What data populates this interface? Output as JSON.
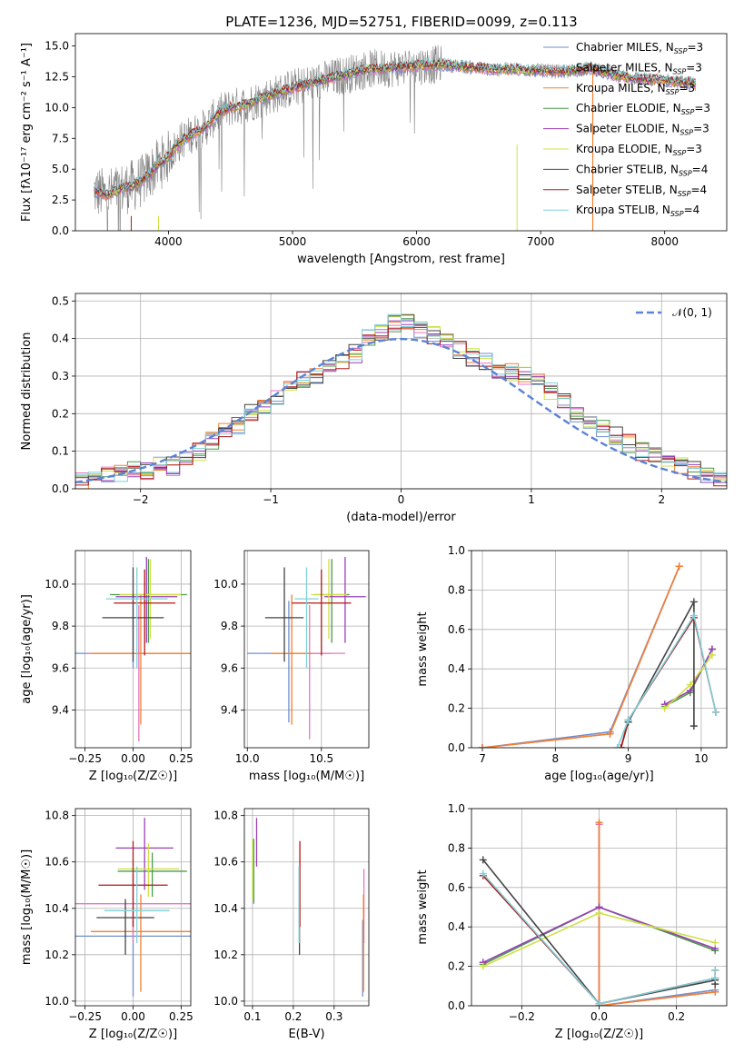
{
  "title": "PLATE=1236, MJD=52751, FIBERID=0099, z=0.113",
  "colors": {
    "Chabrier MILES": "#6f8fcf",
    "Salpeter MILES": "#e377c2",
    "Kroupa MILES": "#f08030",
    "Chabrier ELODIE": "#4a9a4a",
    "Salpeter ELODIE": "#9a3fb5",
    "Kroupa ELODIE": "#cfe045",
    "Chabrier STELIB": "#444444",
    "Salpeter STELIB": "#b01818",
    "Kroupa STELIB": "#7fd0d8",
    "data": "#808080",
    "normal": "#5b83d6"
  },
  "chart_data": [
    {
      "id": "spectrum",
      "type": "line",
      "xlabel": "wavelength [Angstrom, rest frame]",
      "ylabel": "Flux [fλ10⁻¹⁷ erg cm⁻² s⁻¹ A⁻¹]",
      "xlim": [
        3250,
        8500
      ],
      "ylim": [
        0,
        16
      ],
      "xticks": [
        "4000",
        "5000",
        "6000",
        "7000",
        "8000"
      ],
      "yticks": [
        "0.0",
        "2.5",
        "5.0",
        "7.5",
        "10.0",
        "12.5",
        "15.0"
      ],
      "xtick_values": [
        4000,
        5000,
        6000,
        7000,
        8000
      ],
      "ytick_values": [
        0,
        2.5,
        5,
        7.5,
        10,
        12.5,
        15
      ],
      "model_continuum": {
        "x": [
          3400,
          3500,
          3600,
          3700,
          3800,
          3900,
          4000,
          4100,
          4200,
          4300,
          4400,
          4500,
          4600,
          4800,
          5000,
          5200,
          5400,
          5600,
          5800,
          6000,
          6200,
          6400,
          6600,
          6800,
          7000,
          7200,
          7400,
          7600,
          7800,
          8000,
          8250
        ],
        "y": [
          3.2,
          2.9,
          3.3,
          3.6,
          4.1,
          5.2,
          6.0,
          7.3,
          7.9,
          8.4,
          9.5,
          10.0,
          10.2,
          10.9,
          11.6,
          12.1,
          12.6,
          13.1,
          13.2,
          13.4,
          13.5,
          13.3,
          13.1,
          13.1,
          13.0,
          12.9,
          13.2,
          12.6,
          12.3,
          12.2,
          11.9
        ]
      },
      "legend_location": "upper right",
      "legend": [
        {
          "label": "Chabrier MILES, N",
          "sub": "SSP",
          "tail": "=3"
        },
        {
          "label": "Salpeter MILES, N",
          "sub": "SSP",
          "tail": "=3"
        },
        {
          "label": "Kroupa MILES, N",
          "sub": "SSP",
          "tail": "=3"
        },
        {
          "label": "Chabrier ELODIE, N",
          "sub": "SSP",
          "tail": "=3"
        },
        {
          "label": "Salpeter ELODIE, N",
          "sub": "SSP",
          "tail": "=3"
        },
        {
          "label": "Kroupa ELODIE, N",
          "sub": "SSP",
          "tail": "=3"
        },
        {
          "label": "Chabrier STELIB, N",
          "sub": "SSP",
          "tail": "=4"
        },
        {
          "label": "Salpeter STELIB, N",
          "sub": "SSP",
          "tail": "=4"
        },
        {
          "label": "Kroupa STELIB, N",
          "sub": "SSP",
          "tail": "=4"
        }
      ]
    },
    {
      "id": "residuals",
      "type": "line",
      "xlabel": "(data-model)/error",
      "ylabel": "Normed distribution",
      "xlim": [
        -2.5,
        2.5
      ],
      "ylim": [
        0,
        0.52
      ],
      "xticks": [
        "−2",
        "−1",
        "0",
        "1",
        "2"
      ],
      "xtick_values": [
        -2,
        -1,
        0,
        1,
        2
      ],
      "yticks": [
        "0.0",
        "0.1",
        "0.2",
        "0.3",
        "0.4",
        "0.5"
      ],
      "ytick_values": [
        0,
        0.1,
        0.2,
        0.3,
        0.4,
        0.5
      ],
      "grid": true,
      "legend": "𝒩(0, 1)",
      "normal": {
        "mu": 0,
        "sigma": 1
      },
      "hist_bins": [
        -2.5,
        -2.4,
        -2.3,
        -2.2,
        -2.1,
        -2.0,
        -1.9,
        -1.8,
        -1.7,
        -1.6,
        -1.5,
        -1.4,
        -1.3,
        -1.2,
        -1.1,
        -1.0,
        -0.9,
        -0.8,
        -0.7,
        -0.6,
        -0.5,
        -0.4,
        -0.3,
        -0.2,
        -0.1,
        0.0,
        0.1,
        0.2,
        0.3,
        0.4,
        0.5,
        0.6,
        0.7,
        0.8,
        0.9,
        1.0,
        1.1,
        1.2,
        1.3,
        1.4,
        1.5,
        1.6,
        1.7,
        1.8,
        1.9,
        2.0,
        2.1,
        2.2,
        2.3,
        2.4
      ],
      "hist_values": [
        0.02,
        0.03,
        0.04,
        0.04,
        0.05,
        0.05,
        0.06,
        0.06,
        0.08,
        0.1,
        0.13,
        0.15,
        0.17,
        0.2,
        0.22,
        0.24,
        0.27,
        0.29,
        0.3,
        0.33,
        0.34,
        0.36,
        0.4,
        0.42,
        0.44,
        0.44,
        0.42,
        0.41,
        0.4,
        0.37,
        0.35,
        0.34,
        0.31,
        0.31,
        0.3,
        0.29,
        0.26,
        0.23,
        0.2,
        0.18,
        0.16,
        0.14,
        0.12,
        0.1,
        0.09,
        0.07,
        0.06,
        0.05,
        0.04,
        0.03
      ]
    },
    {
      "id": "age_vs_Z",
      "type": "scatter",
      "xlabel": "Z [log₁₀(Z/Z☉)]",
      "ylabel": "age  [log₁₀(age/yr)]",
      "xlim": [
        -0.3,
        0.3
      ],
      "ylim": [
        9.22,
        10.16
      ],
      "xticks": [
        "−0.25",
        "0.00",
        "0.25"
      ],
      "xtick_values": [
        -0.25,
        0,
        0.25
      ],
      "yticks": [
        "9.4",
        "9.6",
        "9.8",
        "10.0"
      ],
      "ytick_values": [
        9.4,
        9.6,
        9.8,
        10.0
      ],
      "grid": true,
      "points": [
        {
          "model": "Chabrier MILES",
          "x": 0.0,
          "y": 9.67,
          "xerr": 0.3,
          "yerr_lo": 9.6,
          "yerr_hi": 9.95
        },
        {
          "model": "Salpeter MILES",
          "x": 0.03,
          "y": 9.67,
          "xerr": 0.27,
          "yerr_lo": 9.25,
          "yerr_hi": 9.9
        },
        {
          "model": "Kroupa MILES",
          "x": 0.04,
          "y": 9.67,
          "xerr": 0.26,
          "yerr_lo": 9.33,
          "yerr_hi": 9.95
        },
        {
          "model": "Chabrier ELODIE",
          "x": 0.08,
          "y": 9.95,
          "xerr": 0.2,
          "yerr_lo": 9.72,
          "yerr_hi": 10.12
        },
        {
          "model": "Salpeter ELODIE",
          "x": 0.07,
          "y": 9.94,
          "xerr": 0.16,
          "yerr_lo": 9.72,
          "yerr_hi": 10.13
        },
        {
          "model": "Kroupa ELODIE",
          "x": 0.09,
          "y": 9.95,
          "xerr": 0.16,
          "yerr_lo": 9.74,
          "yerr_hi": 10.12
        },
        {
          "model": "Chabrier STELIB",
          "x": 0.0,
          "y": 9.84,
          "xerr": 0.16,
          "yerr_lo": 9.63,
          "yerr_hi": 10.08
        },
        {
          "model": "Salpeter STELIB",
          "x": 0.06,
          "y": 9.91,
          "xerr": 0.16,
          "yerr_lo": 9.66,
          "yerr_hi": 10.07
        },
        {
          "model": "Kroupa STELIB",
          "x": 0.02,
          "y": 9.93,
          "xerr": 0.16,
          "yerr_lo": 9.6,
          "yerr_hi": 10.08
        }
      ]
    },
    {
      "id": "age_vs_mass",
      "type": "scatter",
      "xlabel": "mass [log₁₀(M/M☉)]",
      "ylabel": "",
      "xlim": [
        9.98,
        10.82
      ],
      "ylim": [
        9.22,
        10.16
      ],
      "xticks": [
        "10.0",
        "10.5"
      ],
      "xtick_values": [
        10.0,
        10.5
      ],
      "yticks": [
        "9.4",
        "9.6",
        "9.8",
        "10.0"
      ],
      "ytick_values": [
        9.4,
        9.6,
        9.8,
        10.0
      ],
      "grid": true,
      "points": [
        {
          "model": "Chabrier MILES",
          "x": 10.28,
          "y": 9.67,
          "xerr": 0.28,
          "yerr_lo": 9.34,
          "yerr_hi": 9.92
        },
        {
          "model": "Salpeter MILES",
          "x": 10.42,
          "y": 9.67,
          "xerr": 0.24,
          "yerr_lo": 9.26,
          "yerr_hi": 9.9
        },
        {
          "model": "Kroupa MILES",
          "x": 10.3,
          "y": 9.67,
          "xerr": 0.14,
          "yerr_lo": 9.33,
          "yerr_hi": 9.95
        },
        {
          "model": "Chabrier ELODIE",
          "x": 10.57,
          "y": 9.95,
          "xerr": 0.12,
          "yerr_lo": 9.72,
          "yerr_hi": 10.12
        },
        {
          "model": "Salpeter ELODIE",
          "x": 10.66,
          "y": 9.94,
          "xerr": 0.14,
          "yerr_lo": 9.72,
          "yerr_hi": 10.13
        },
        {
          "model": "Kroupa ELODIE",
          "x": 10.55,
          "y": 9.95,
          "xerr": 0.12,
          "yerr_lo": 9.74,
          "yerr_hi": 10.12
        },
        {
          "model": "Chabrier STELIB",
          "x": 10.25,
          "y": 9.84,
          "xerr": 0.13,
          "yerr_lo": 9.63,
          "yerr_hi": 10.08
        },
        {
          "model": "Salpeter STELIB",
          "x": 10.5,
          "y": 9.91,
          "xerr": 0.2,
          "yerr_lo": 9.66,
          "yerr_hi": 10.07
        },
        {
          "model": "Kroupa STELIB",
          "x": 10.4,
          "y": 9.93,
          "xerr": 0.08,
          "yerr_lo": 9.6,
          "yerr_hi": 10.08
        }
      ]
    },
    {
      "id": "weight_vs_age",
      "type": "line",
      "xlabel": "age  [log₁₀(age/yr)]",
      "ylabel": "mass weight",
      "xlim": [
        6.85,
        10.35
      ],
      "ylim": [
        0,
        1
      ],
      "xticks": [
        "7",
        "8",
        "9",
        "10"
      ],
      "xtick_values": [
        7,
        8,
        9,
        10
      ],
      "yticks": [
        "0.0",
        "0.2",
        "0.4",
        "0.6",
        "0.8",
        "1.0"
      ],
      "ytick_values": [
        0,
        0.2,
        0.4,
        0.6,
        0.8,
        1.0
      ],
      "grid": true,
      "series": [
        {
          "model": "Chabrier MILES",
          "x": [
            7.0,
            8.75,
            9.7
          ],
          "y": [
            0.0,
            0.08,
            0.92
          ]
        },
        {
          "model": "Salpeter MILES",
          "x": [
            7.0,
            8.75,
            9.7
          ],
          "y": [
            0.0,
            0.07,
            0.92
          ]
        },
        {
          "model": "Kroupa MILES",
          "x": [
            7.0,
            8.75,
            9.7
          ],
          "y": [
            0.0,
            0.07,
            0.92
          ]
        },
        {
          "model": "Chabrier ELODIE",
          "x": [
            9.5,
            9.85,
            10.15
          ],
          "y": [
            0.21,
            0.28,
            0.5
          ]
        },
        {
          "model": "Salpeter ELODIE",
          "x": [
            9.5,
            9.85,
            10.15
          ],
          "y": [
            0.22,
            0.29,
            0.5
          ]
        },
        {
          "model": "Kroupa ELODIE",
          "x": [
            9.5,
            9.85,
            10.15
          ],
          "y": [
            0.2,
            0.32,
            0.47
          ]
        },
        {
          "model": "Chabrier STELIB",
          "x": [
            8.9,
            9.0,
            9.9,
            9.9
          ],
          "y": [
            0.0,
            0.13,
            0.74,
            0.11
          ]
        },
        {
          "model": "Salpeter STELIB",
          "x": [
            8.9,
            9.0,
            9.9,
            10.2
          ],
          "y": [
            0.0,
            0.14,
            0.66,
            0.18
          ]
        },
        {
          "model": "Kroupa STELIB",
          "x": [
            8.85,
            9.0,
            9.9,
            10.2
          ],
          "y": [
            0.0,
            0.14,
            0.67,
            0.18
          ]
        }
      ]
    },
    {
      "id": "mass_vs_Z",
      "type": "scatter",
      "xlabel": "Z [log₁₀(Z/Z☉)]",
      "ylabel": "mass [log₁₀(M/M☉)]",
      "xlim": [
        -0.3,
        0.3
      ],
      "ylim": [
        9.98,
        10.83
      ],
      "xticks": [
        "−0.25",
        "0.00",
        "0.25"
      ],
      "xtick_values": [
        -0.25,
        0,
        0.25
      ],
      "yticks": [
        "10.0",
        "10.2",
        "10.4",
        "10.6",
        "10.8"
      ],
      "ytick_values": [
        10.0,
        10.2,
        10.4,
        10.6,
        10.8
      ],
      "grid": true,
      "points": [
        {
          "model": "Chabrier MILES",
          "x": 0.0,
          "y": 10.28,
          "xerr": 0.3,
          "yerr_lo": 10.02,
          "yerr_hi": 10.35
        },
        {
          "model": "Salpeter MILES",
          "x": 0.0,
          "y": 10.42,
          "xerr": 0.3,
          "yerr_lo": 10.25,
          "yerr_hi": 10.55
        },
        {
          "model": "Kroupa MILES",
          "x": 0.04,
          "y": 10.3,
          "xerr": 0.26,
          "yerr_lo": 10.04,
          "yerr_hi": 10.46
        },
        {
          "model": "Chabrier ELODIE",
          "x": 0.1,
          "y": 10.56,
          "xerr": 0.18,
          "yerr_lo": 10.45,
          "yerr_hi": 10.64
        },
        {
          "model": "Salpeter ELODIE",
          "x": 0.06,
          "y": 10.66,
          "xerr": 0.15,
          "yerr_lo": 10.48,
          "yerr_hi": 10.79
        },
        {
          "model": "Kroupa ELODIE",
          "x": 0.08,
          "y": 10.57,
          "xerr": 0.16,
          "yerr_lo": 10.45,
          "yerr_hi": 10.68
        },
        {
          "model": "Chabrier STELIB",
          "x": -0.04,
          "y": 10.36,
          "xerr": 0.15,
          "yerr_lo": 10.2,
          "yerr_hi": 10.44
        },
        {
          "model": "Salpeter STELIB",
          "x": 0.0,
          "y": 10.5,
          "xerr": 0.18,
          "yerr_lo": 10.32,
          "yerr_hi": 10.69
        },
        {
          "model": "Kroupa STELIB",
          "x": 0.02,
          "y": 10.39,
          "xerr": 0.17,
          "yerr_lo": 10.25,
          "yerr_hi": 10.58
        }
      ]
    },
    {
      "id": "mass_vs_EBV",
      "type": "scatter",
      "xlabel": "E(B-V)",
      "ylabel": "",
      "xlim": [
        0.08,
        0.385
      ],
      "ylim": [
        9.98,
        10.83
      ],
      "xticks": [
        "0.1",
        "0.2",
        "0.3"
      ],
      "xtick_values": [
        0.1,
        0.2,
        0.3
      ],
      "yticks": [
        "10.0",
        "10.2",
        "10.4",
        "10.6",
        "10.8"
      ],
      "ytick_values": [
        10.0,
        10.2,
        10.4,
        10.6,
        10.8
      ],
      "grid": true,
      "points": [
        {
          "model": "Chabrier MILES",
          "x": 0.37,
          "y": 10.28,
          "yerr_lo": 10.02,
          "yerr_hi": 10.35
        },
        {
          "model": "Salpeter MILES",
          "x": 0.373,
          "y": 10.42,
          "yerr_lo": 10.25,
          "yerr_hi": 10.57
        },
        {
          "model": "Kroupa MILES",
          "x": 0.372,
          "y": 10.3,
          "yerr_lo": 10.04,
          "yerr_hi": 10.46
        },
        {
          "model": "Chabrier ELODIE",
          "x": 0.103,
          "y": 10.56,
          "yerr_lo": 10.42,
          "yerr_hi": 10.7
        },
        {
          "model": "Salpeter ELODIE",
          "x": 0.11,
          "y": 10.66,
          "yerr_lo": 10.58,
          "yerr_hi": 10.79
        },
        {
          "model": "Kroupa ELODIE",
          "x": 0.1,
          "y": 10.57,
          "yerr_lo": 10.44,
          "yerr_hi": 10.7
        },
        {
          "model": "Chabrier STELIB",
          "x": 0.215,
          "y": 10.36,
          "yerr_lo": 10.2,
          "yerr_hi": 10.44
        },
        {
          "model": "Salpeter STELIB",
          "x": 0.216,
          "y": 10.5,
          "yerr_lo": 10.32,
          "yerr_hi": 10.69
        },
        {
          "model": "Kroupa STELIB",
          "x": 0.214,
          "y": 10.39,
          "yerr_lo": 10.25,
          "yerr_hi": 10.58
        }
      ]
    },
    {
      "id": "weight_vs_Z",
      "type": "line",
      "xlabel": "Z [log₁₀(Z/Z☉)]",
      "ylabel": "mass weight",
      "xlim": [
        -0.33,
        0.33
      ],
      "ylim": [
        0,
        1
      ],
      "xticks": [
        "−0.2",
        "0.0",
        "0.2"
      ],
      "xtick_values": [
        -0.2,
        0.0,
        0.2
      ],
      "yticks": [
        "0.0",
        "0.2",
        "0.4",
        "0.6",
        "0.8",
        "1.0"
      ],
      "ytick_values": [
        0,
        0.2,
        0.4,
        0.6,
        0.8,
        1.0
      ],
      "grid": true,
      "series": [
        {
          "model": "Chabrier MILES",
          "x": [
            0.0,
            0.0,
            0.3
          ],
          "y": [
            0.92,
            0.0,
            0.08
          ]
        },
        {
          "model": "Salpeter MILES",
          "x": [
            0.0,
            0.0,
            0.3
          ],
          "y": [
            0.92,
            0.0,
            0.07
          ]
        },
        {
          "model": "Kroupa MILES",
          "x": [
            0.0,
            0.0,
            0.3
          ],
          "y": [
            0.93,
            0.0,
            0.07
          ]
        },
        {
          "model": "Chabrier ELODIE",
          "x": [
            -0.3,
            0.0,
            0.3
          ],
          "y": [
            0.21,
            0.5,
            0.28
          ]
        },
        {
          "model": "Salpeter ELODIE",
          "x": [
            -0.3,
            0.0,
            0.3
          ],
          "y": [
            0.22,
            0.5,
            0.29
          ]
        },
        {
          "model": "Kroupa ELODIE",
          "x": [
            -0.3,
            0.0,
            0.3
          ],
          "y": [
            0.2,
            0.47,
            0.32
          ]
        },
        {
          "model": "Chabrier STELIB",
          "x": [
            -0.3,
            0.0,
            0.3,
            0.3
          ],
          "y": [
            0.74,
            0.01,
            0.13,
            0.11
          ]
        },
        {
          "model": "Salpeter STELIB",
          "x": [
            -0.3,
            0.0,
            0.3,
            0.3
          ],
          "y": [
            0.66,
            0.01,
            0.14,
            0.18
          ]
        },
        {
          "model": "Kroupa STELIB",
          "x": [
            -0.3,
            0.0,
            0.3,
            0.3
          ],
          "y": [
            0.67,
            0.01,
            0.14,
            0.18
          ]
        }
      ]
    }
  ]
}
